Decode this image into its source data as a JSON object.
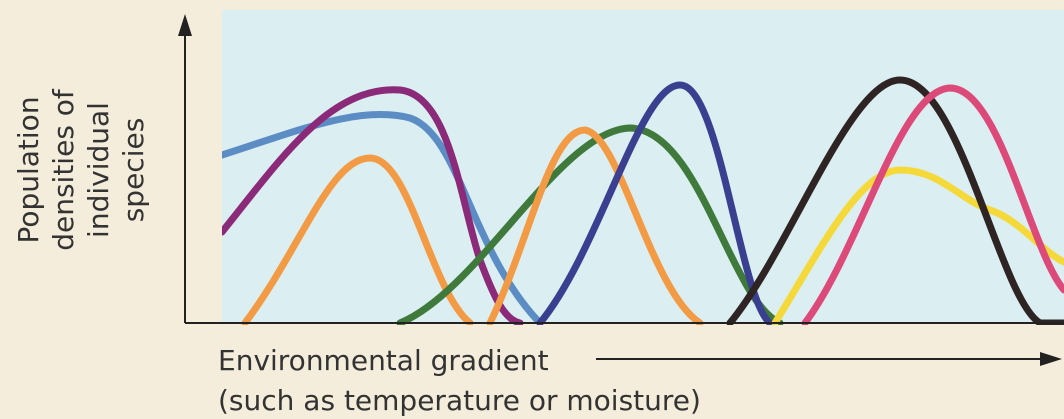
{
  "y_label": [
    "Population",
    "densities of",
    "individual",
    "species"
  ],
  "x_label": [
    "Environmental gradient",
    "(such as temperature or moisture)"
  ]
}
